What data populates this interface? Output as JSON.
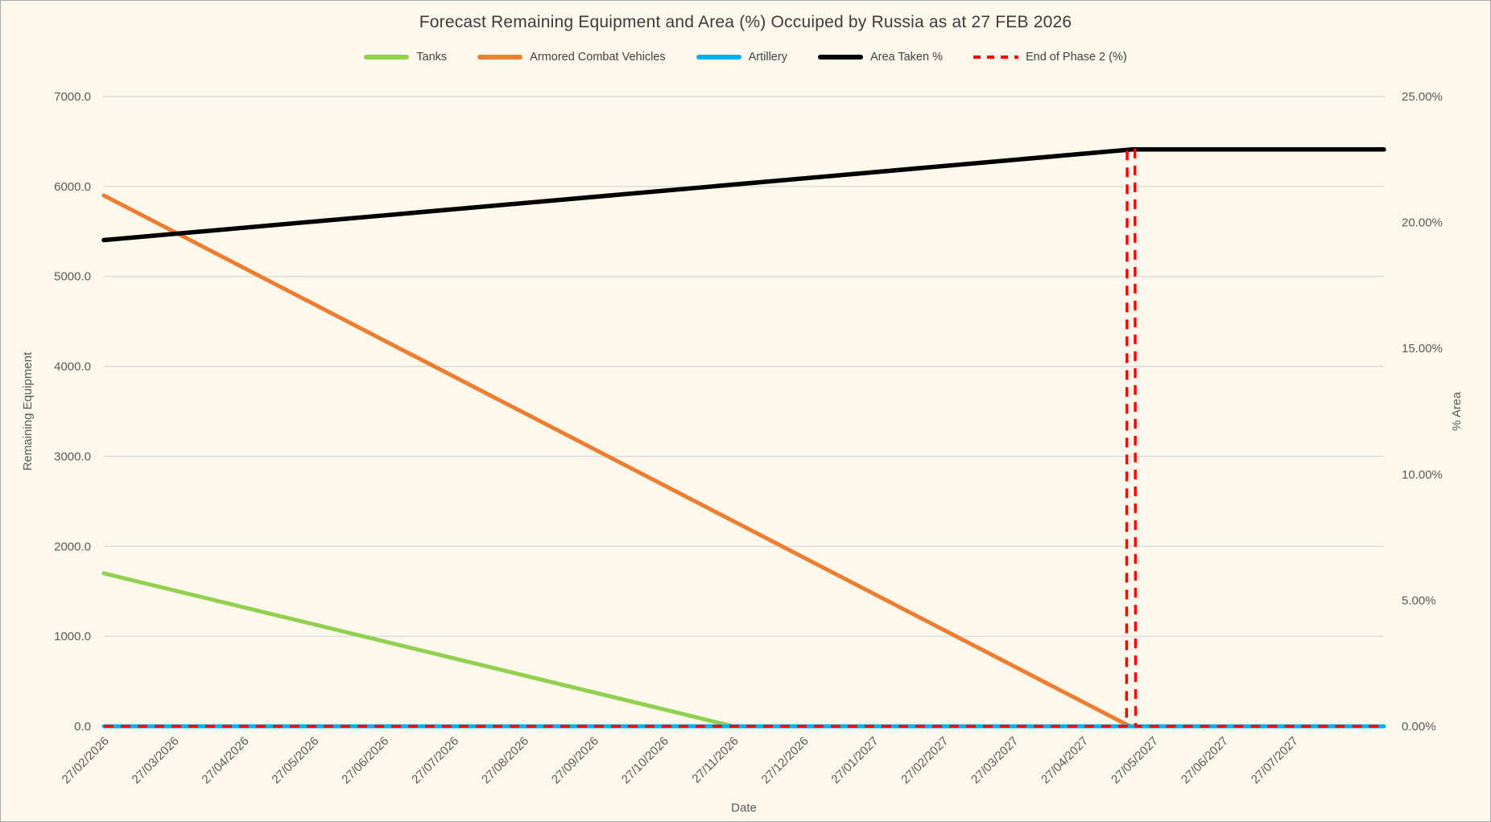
{
  "title": "Forecast Remaining Equipment and Area (%) Occuiped by Russia as at 27 FEB 2026",
  "legend": [
    {
      "label": "Tanks",
      "color": "#92D050",
      "style": "solid"
    },
    {
      "label": "Armored Combat Vehicles",
      "color": "#ED7D31",
      "style": "solid"
    },
    {
      "label": "Artillery",
      "color": "#00B0F0",
      "style": "solid"
    },
    {
      "label": "Area Taken %",
      "color": "#000000",
      "style": "solid"
    },
    {
      "label": "End of Phase 2 (%)",
      "color": "#FF0000",
      "style": "dashed"
    }
  ],
  "chart_data": {
    "type": "line",
    "title": "Forecast Remaining Equipment and Area (%) Occuiped by Russia as at 27 FEB 2026",
    "xlabel": "Date",
    "ylabel_left": "Remaining Equipment",
    "ylabel_right": "% Area",
    "x_tick_labels": [
      "27/02/2026",
      "27/03/2026",
      "27/04/2026",
      "27/05/2026",
      "27/06/2026",
      "27/07/2026",
      "27/08/2026",
      "27/09/2026",
      "27/10/2026",
      "27/11/2026",
      "27/12/2026",
      "27/01/2027",
      "27/02/2027",
      "27/03/2027",
      "27/04/2027",
      "27/05/2027",
      "27/06/2027",
      "27/07/2027"
    ],
    "x_domain_months": [
      0,
      18.3
    ],
    "left_axis": {
      "min": 0,
      "max": 7000,
      "tick_values": [
        0,
        1000,
        2000,
        3000,
        4000,
        5000,
        6000,
        7000
      ],
      "tick_labels": [
        "0.0",
        "1000.0",
        "2000.0",
        "3000.0",
        "4000.0",
        "5000.0",
        "6000.0",
        "7000.0"
      ]
    },
    "right_axis": {
      "min": 0,
      "max": 25,
      "tick_values": [
        0,
        5,
        10,
        15,
        20,
        25
      ],
      "tick_labels": [
        "0.00%",
        "5.00%",
        "10.00%",
        "15.00%",
        "20.00%",
        "25.00%"
      ]
    },
    "grid": true,
    "legend_position": "top",
    "series": [
      {
        "name": "Tanks",
        "axis": "left",
        "color": "#92D050",
        "width": 5,
        "dashed": false,
        "points_months_value": [
          [
            0,
            1700
          ],
          [
            9,
            0
          ],
          [
            18.3,
            0
          ]
        ]
      },
      {
        "name": "Armored Combat Vehicles",
        "axis": "left",
        "color": "#ED7D31",
        "width": 5,
        "dashed": false,
        "points_months_value": [
          [
            0,
            5900
          ],
          [
            14.67,
            0
          ],
          [
            18.3,
            0
          ]
        ]
      },
      {
        "name": "Artillery",
        "axis": "left",
        "color": "#00B0F0",
        "width": 5,
        "dashed": false,
        "points_months_value": [
          [
            0,
            0
          ],
          [
            18.3,
            0
          ]
        ]
      },
      {
        "name": "Area Taken %",
        "axis": "right",
        "color": "#000000",
        "width": 5.5,
        "dashed": false,
        "points_months_value": [
          [
            0,
            19.3
          ],
          [
            14.7,
            22.9
          ],
          [
            18.3,
            22.9
          ]
        ]
      },
      {
        "name": "End of Phase 2 (%)",
        "axis": "right",
        "color": "#FF0000",
        "width": 3.5,
        "dashed": true,
        "points_months_value": [
          [
            0,
            0
          ],
          [
            14.62,
            0
          ],
          [
            14.63,
            22.88
          ],
          [
            14.74,
            22.88
          ],
          [
            14.75,
            0
          ],
          [
            18.3,
            0
          ]
        ]
      }
    ],
    "annotations": {
      "tanks_reach_zero_at": "27/11/2026",
      "acv_reach_zero_between": "27/04/2027 and 27/05/2027",
      "area_taken_start_pct": 19.3,
      "area_taken_plateau_pct": 22.9
    }
  }
}
